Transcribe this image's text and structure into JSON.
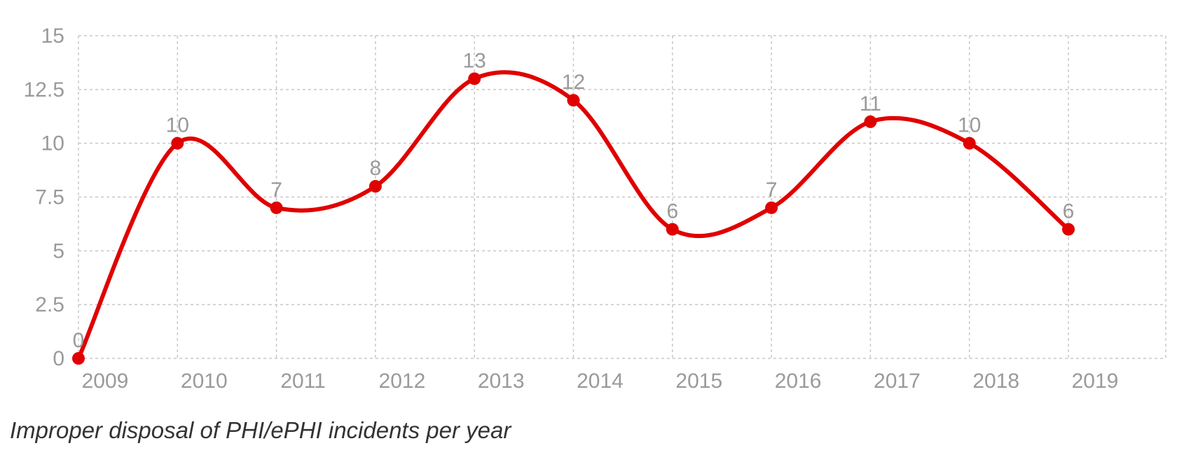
{
  "colors": {
    "series": "#e00000",
    "grid": "#c8c8c8",
    "label": "#9a9a9a",
    "caption": "#333333"
  },
  "caption": "Improper disposal of PHI/ePHI incidents per year",
  "chart_data": {
    "type": "line",
    "title": "",
    "xlabel": "",
    "ylabel": "",
    "x": [
      "2009",
      "2010",
      "2011",
      "2012",
      "2013",
      "2014",
      "2015",
      "2016",
      "2017",
      "2018",
      "2019"
    ],
    "series": [
      {
        "values": [
          0,
          10,
          7,
          8,
          13,
          12,
          6,
          7,
          11,
          10,
          6
        ]
      }
    ],
    "y_ticks": [
      "0",
      "2.5",
      "5",
      "7.5",
      "10",
      "12.5",
      "15"
    ],
    "ylim": [
      0,
      15
    ],
    "smooth": true,
    "data_labels": true,
    "grid": true,
    "legend": "none"
  }
}
